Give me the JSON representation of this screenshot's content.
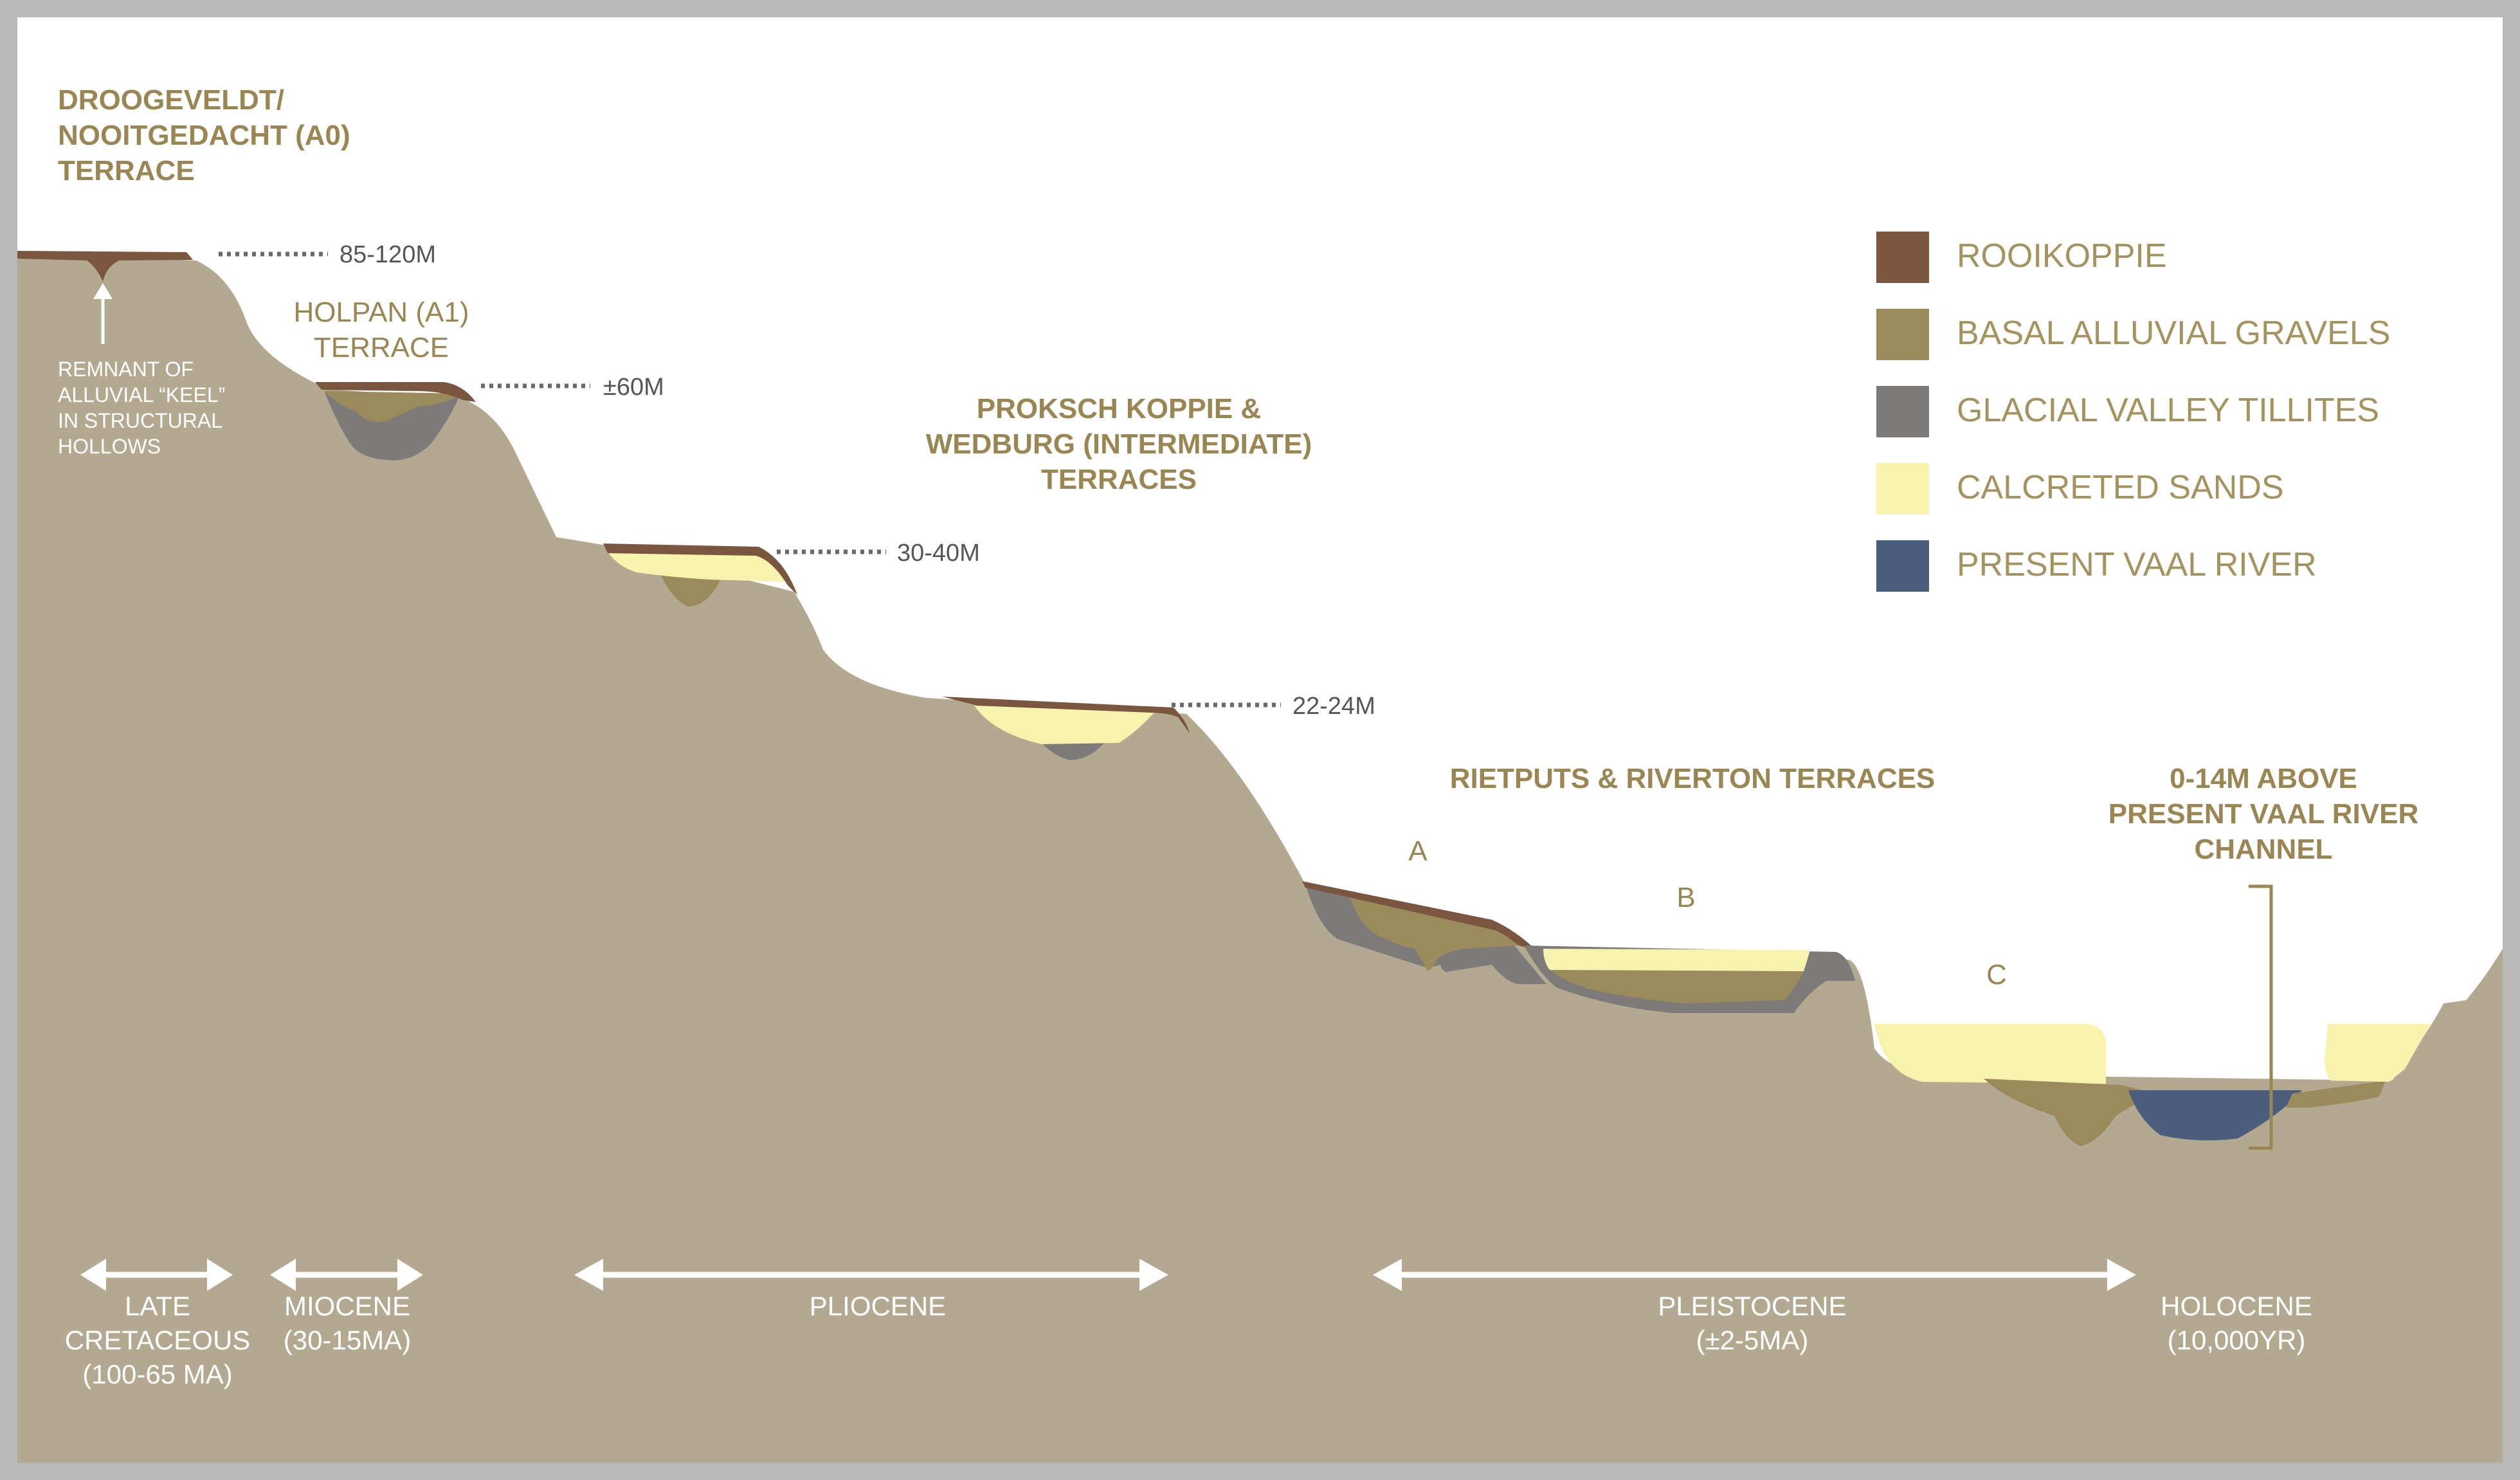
{
  "terraces": {
    "a0_line1": "DROOGEVELDT/",
    "a0_line2": "NOOITGEDACHT (A0)",
    "a0_line3": "TERRACE",
    "a1_line1": "HOLPAN (A1)",
    "a1_line2": "TERRACE",
    "int_line1": "PROKSCH KOPPIE &",
    "int_line2": "WEDBURG (INTERMEDIATE)",
    "int_line3": "TERRACES",
    "riet": "RIETPUTS & RIVERTON TERRACES",
    "sub_a": "A",
    "sub_b": "B",
    "sub_c": "C",
    "present_line1": "0-14M ABOVE",
    "present_line2": "PRESENT VAAL RIVER",
    "present_line3": "CHANNEL"
  },
  "elevations": {
    "e1": "85-120M",
    "e2": "±60M",
    "e3": "30-40M",
    "e4": "22-24M"
  },
  "note": {
    "line1": "REMNANT OF",
    "line2": "ALLUVIAL “KEEL”",
    "line3": "IN STRUCTURAL",
    "line4": "HOLLOWS"
  },
  "legend": {
    "items": [
      {
        "label": "ROOIKOPPIE",
        "color": "#7a5540"
      },
      {
        "label": "BASAL ALLUVIAL GRAVELS",
        "color": "#9a8a5c"
      },
      {
        "label": "GLACIAL VALLEY TILLITES",
        "color": "#7c7b79"
      },
      {
        "label": "CALCRETED SANDS",
        "color": "#f7f2ad"
      },
      {
        "label": "PRESENT VAAL RIVER",
        "color": "#4b5e7e"
      }
    ]
  },
  "periods": {
    "late_cret_1": "LATE",
    "late_cret_2": "CRETACEOUS",
    "late_cret_3": "(100-65 MA)",
    "miocene_1": "MIOCENE",
    "miocene_2": "(30-15MA)",
    "pliocene": "PLIOCENE",
    "pleistocene_1": "PLEISTOCENE",
    "pleistocene_2": "(±2-5MA)",
    "holocene_1": "HOLOCENE",
    "holocene_2": "(10,000YR)"
  },
  "colors": {
    "ground": "#b3a990",
    "rooikoppie": "#7a5540",
    "gravels": "#9a8a5c",
    "tillites": "#7c7b79",
    "sands": "#f7f2ad",
    "river": "#4b5e7e",
    "frame": "#b9b9b9",
    "sky": "#ffffff"
  }
}
